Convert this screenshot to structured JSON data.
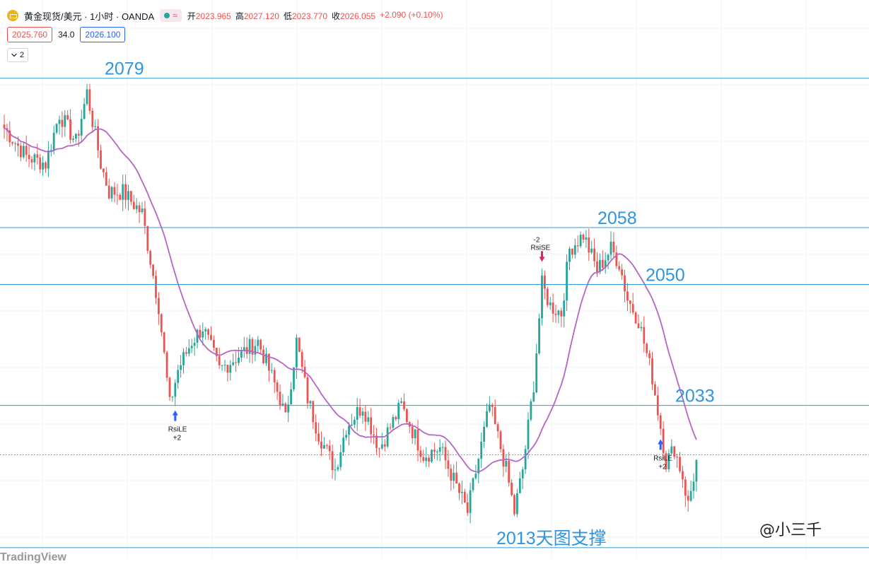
{
  "header": {
    "symbol_title": "黄金现货/美元 · 1小时 · OANDA",
    "wave_icon": "≈",
    "ohlc": {
      "open_label": "开",
      "open": "2023.965",
      "high_label": "高",
      "high": "2027.120",
      "low_label": "低",
      "low": "2023.770",
      "close_label": "收",
      "close": "2026.055",
      "change": "+2.090 (+0.10%)"
    }
  },
  "quote": {
    "bid": "2025.760",
    "spread": "34.0",
    "ask": "2026.100"
  },
  "indicators_toggle": {
    "count": "2",
    "icon": "chevron-down-icon"
  },
  "watermark": "@小三千",
  "footer": "TradingView",
  "colors": {
    "up": "#26a69a",
    "down": "#ef5350",
    "ma": "#b565c6",
    "level": "#2f9bd6",
    "label": "#2f95e0"
  },
  "chart_data": {
    "type": "candlestick",
    "levels": [
      {
        "value": 2079,
        "label": "2079"
      },
      {
        "value": 2058,
        "label": "2058"
      },
      {
        "value": 2050,
        "label": "2050"
      },
      {
        "value": 2033,
        "label": "2033"
      },
      {
        "value": 2013,
        "label": "2013天图支撑"
      }
    ],
    "last_price": 2026.055,
    "ylim": [
      2011.5,
      2090
    ],
    "signals": [
      {
        "type": "RsiLE",
        "text": "RsiLE",
        "qty": "+2",
        "direction": "long",
        "bar": 62
      },
      {
        "type": "RsiSE",
        "text": "RsiSE",
        "qty": "-2",
        "direction": "short",
        "bar": 195
      },
      {
        "type": "RsiLE",
        "text": "RsiLE",
        "qty": "+2",
        "direction": "long",
        "bar": 238
      }
    ],
    "anchors": [
      [
        0,
        2072
      ],
      [
        8,
        2068
      ],
      [
        15,
        2067
      ],
      [
        20,
        2074
      ],
      [
        26,
        2070
      ],
      [
        30,
        2077
      ],
      [
        35,
        2067
      ],
      [
        38,
        2063
      ],
      [
        43,
        2063
      ],
      [
        50,
        2060
      ],
      [
        56,
        2047
      ],
      [
        58,
        2040
      ],
      [
        60,
        2033
      ],
      [
        63,
        2038
      ],
      [
        68,
        2042
      ],
      [
        72,
        2044
      ],
      [
        78,
        2038
      ],
      [
        85,
        2040
      ],
      [
        92,
        2042
      ],
      [
        97,
        2037
      ],
      [
        100,
        2034
      ],
      [
        102,
        2031
      ],
      [
        106,
        2042
      ],
      [
        110,
        2034
      ],
      [
        114,
        2029
      ],
      [
        120,
        2024
      ],
      [
        124,
        2030
      ],
      [
        130,
        2033
      ],
      [
        136,
        2027
      ],
      [
        144,
        2033
      ],
      [
        152,
        2026
      ],
      [
        158,
        2027
      ],
      [
        168,
        2018
      ],
      [
        176,
        2033
      ],
      [
        182,
        2024
      ],
      [
        185,
        2018
      ],
      [
        188,
        2024
      ],
      [
        192,
        2036
      ],
      [
        195,
        2050
      ],
      [
        198,
        2047
      ],
      [
        202,
        2046
      ],
      [
        205,
        2055
      ],
      [
        210,
        2057
      ],
      [
        215,
        2052
      ],
      [
        220,
        2055
      ],
      [
        223,
        2053
      ],
      [
        226,
        2048
      ],
      [
        230,
        2045
      ],
      [
        235,
        2037
      ],
      [
        238,
        2030
      ],
      [
        240,
        2025
      ],
      [
        243,
        2027
      ],
      [
        246,
        2023
      ],
      [
        248,
        2019
      ],
      [
        251,
        2025
      ]
    ],
    "ma_period": 20
  }
}
